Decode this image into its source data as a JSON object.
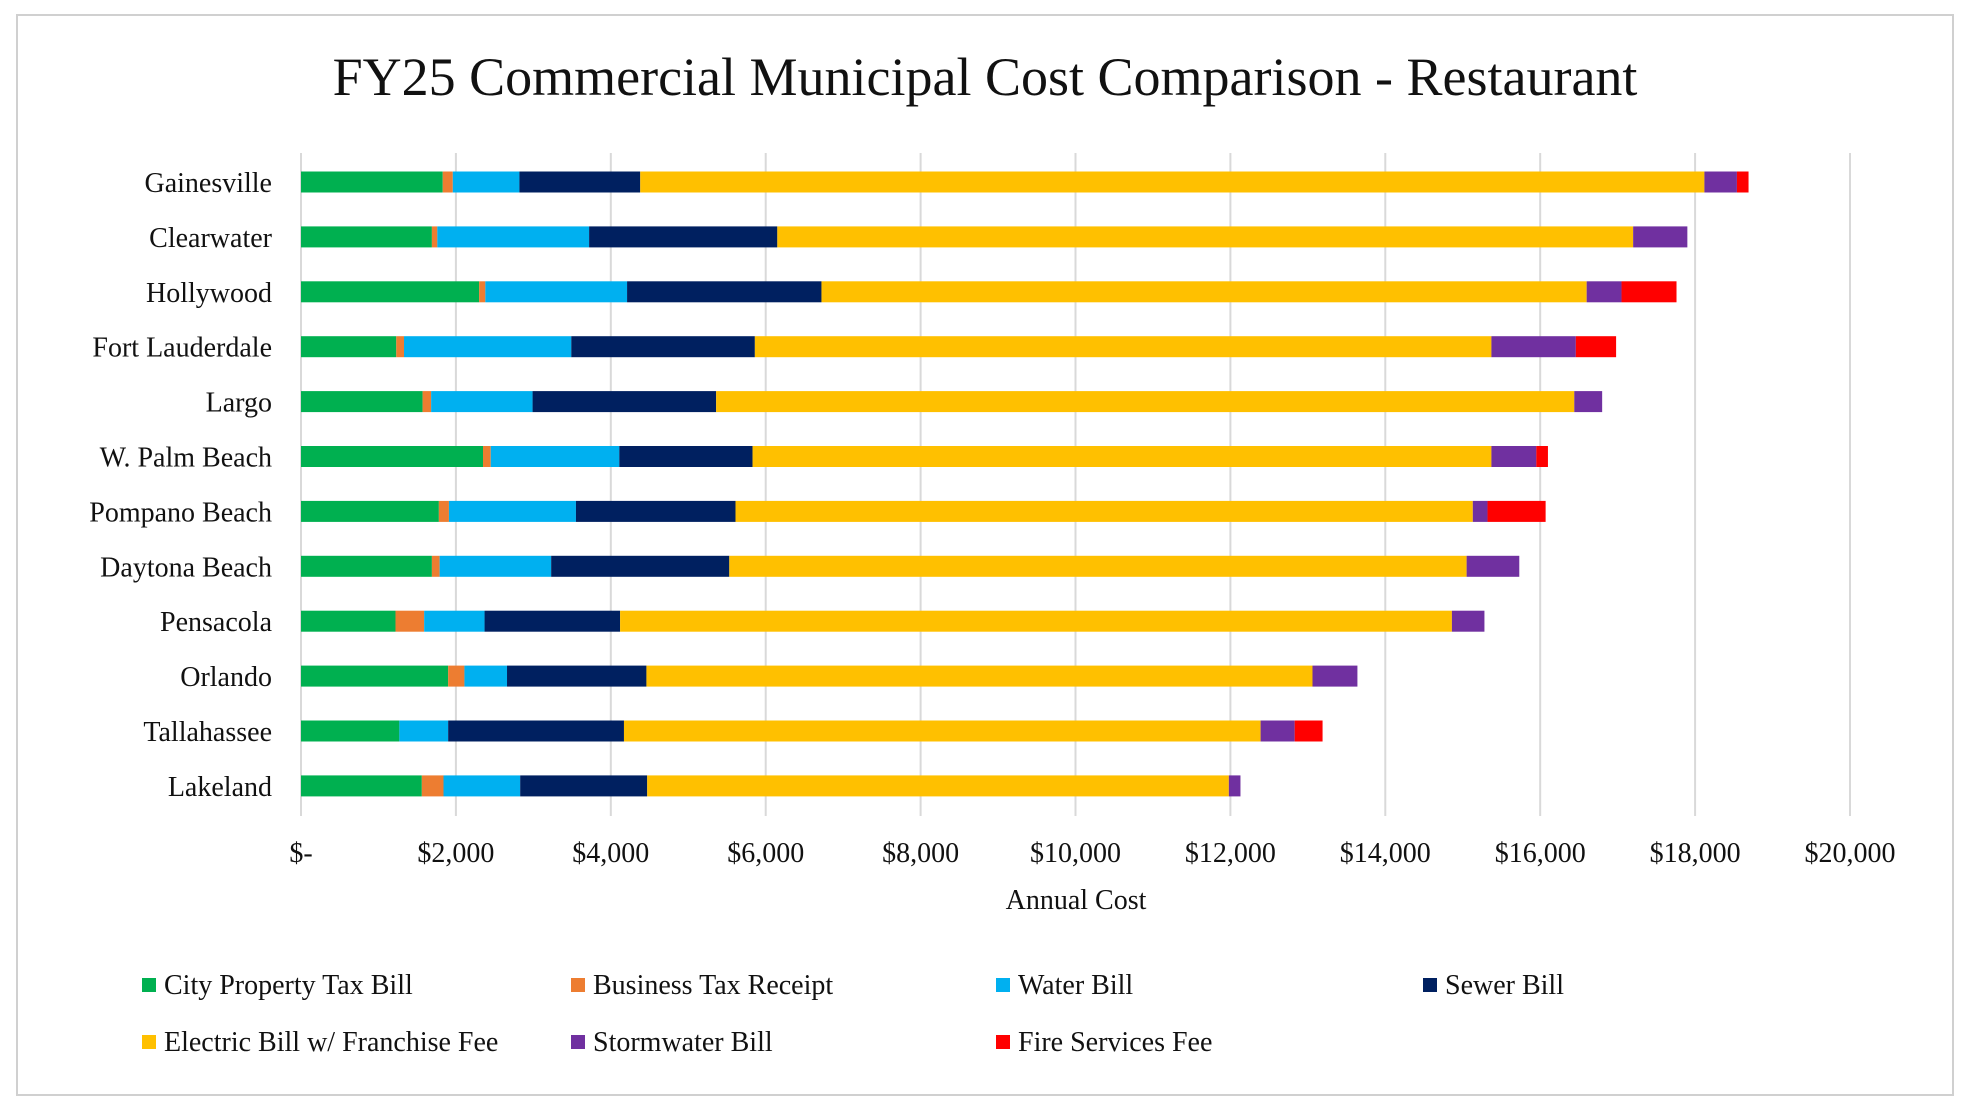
{
  "chart_data": {
    "type": "bar",
    "orientation": "horizontal",
    "stacked": true,
    "title": "FY25 Commercial Municipal Cost Comparison - Restaurant",
    "xlabel": "Annual Cost",
    "ylabel": "",
    "xlim": [
      0,
      20000
    ],
    "x_ticks": [
      0,
      2000,
      4000,
      6000,
      8000,
      10000,
      12000,
      14000,
      16000,
      18000,
      20000
    ],
    "x_tick_labels": [
      "$-",
      "$2,000",
      "$4,000",
      "$6,000",
      "$8,000",
      "$10,000",
      "$12,000",
      "$14,000",
      "$16,000",
      "$18,000",
      "$20,000"
    ],
    "grid": "vertical",
    "legend_position": "bottom",
    "categories": [
      "Gainesville",
      "Clearwater",
      "Hollywood",
      "Fort Lauderdale",
      "Largo",
      "W. Palm Beach",
      "Pompano Beach",
      "Daytona Beach",
      "Pensacola",
      "Orlando",
      "Tallahassee",
      "Lakeland"
    ],
    "series": [
      {
        "name": "City Property Tax Bill",
        "color": "#00b050",
        "values": [
          1830,
          1690,
          2300,
          1230,
          1570,
          2350,
          1780,
          1690,
          1220,
          1900,
          1270,
          1560
        ]
      },
      {
        "name": "Business Tax Receipt",
        "color": "#ed7d31",
        "values": [
          130,
          70,
          80,
          100,
          110,
          100,
          130,
          100,
          370,
          210,
          0,
          280
        ]
      },
      {
        "name": "Water Bill",
        "color": "#00b0f0",
        "values": [
          860,
          1960,
          1830,
          2160,
          1310,
          1660,
          1640,
          1440,
          780,
          550,
          630,
          990
        ]
      },
      {
        "name": "Sewer Bill",
        "color": "#002060",
        "values": [
          1560,
          2430,
          2510,
          2370,
          2370,
          1720,
          2060,
          2300,
          1750,
          1800,
          2270,
          1640
        ]
      },
      {
        "name": "Electric Bill w/ Franchise Fee",
        "color": "#ffc000",
        "values": [
          13740,
          11050,
          9880,
          9510,
          11080,
          9540,
          9520,
          9520,
          10740,
          8600,
          8220,
          7510
        ]
      },
      {
        "name": "Stormwater Bill",
        "color": "#7030a0",
        "values": [
          420,
          700,
          450,
          1090,
          360,
          580,
          190,
          680,
          420,
          580,
          440,
          150
        ]
      },
      {
        "name": "Fire Services Fee",
        "color": "#ff0000",
        "values": [
          150,
          0,
          710,
          520,
          0,
          150,
          750,
          0,
          0,
          0,
          360,
          0
        ]
      }
    ]
  }
}
